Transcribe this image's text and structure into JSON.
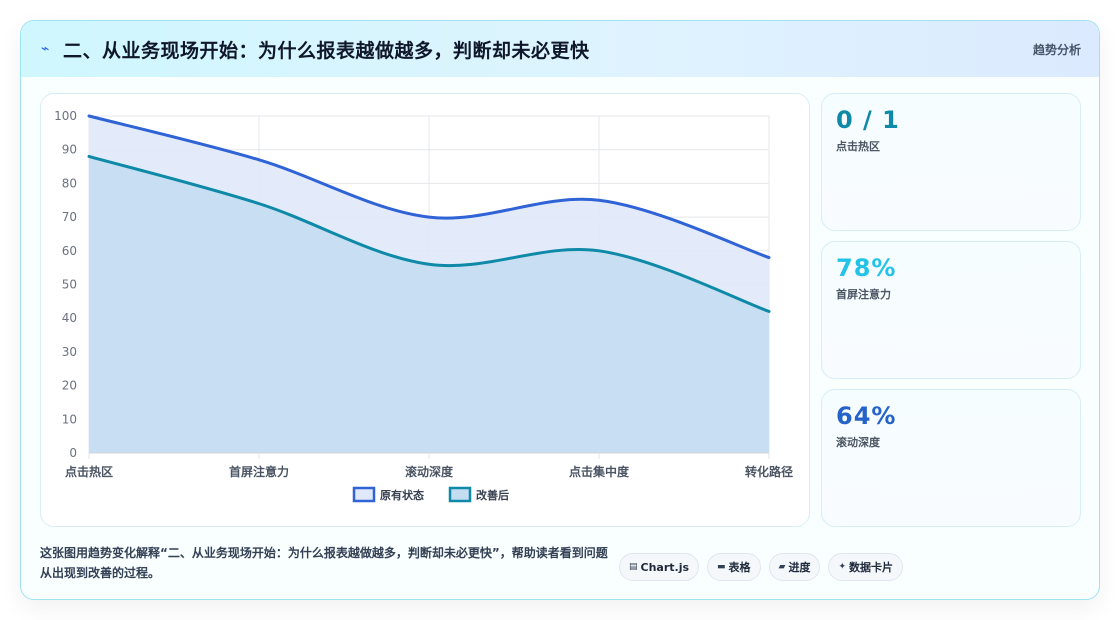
{
  "header": {
    "icon": "lightning-icon",
    "title": "二、从业务现场开始：为什么报表越做越多，判断却未必更快",
    "tag": "趋势分析"
  },
  "stats": [
    {
      "value": "0 / 1",
      "label": "点击热区",
      "color": "#0e8aa8"
    },
    {
      "value": "78%",
      "label": "首屏注意力",
      "color": "#22c3e6"
    },
    {
      "value": "64%",
      "label": "滚动深度",
      "color": "#2563c8"
    }
  ],
  "footer": {
    "text": "这张图用趋势变化解释“二、从业务现场开始：为什么报表越做越多，判断却未必更快”，帮助读者看到问题从出现到改善的过程。",
    "pills": [
      {
        "icon": "chart-icon",
        "glyph": "▤",
        "label": "Chart.js"
      },
      {
        "icon": "table-icon",
        "glyph": "▬",
        "label": "表格"
      },
      {
        "icon": "progress-icon",
        "glyph": "▰",
        "label": "进度"
      },
      {
        "icon": "sparkle-icon",
        "glyph": "✦",
        "label": "数据卡片"
      }
    ]
  },
  "chart_data": {
    "type": "area",
    "categories": [
      "点击热区",
      "首屏注意力",
      "滚动深度",
      "点击集中度",
      "转化路径"
    ],
    "series": [
      {
        "name": "原有状态",
        "values": [
          100,
          87,
          70,
          75,
          58
        ],
        "color": "#2f63d6",
        "fill": "#e0e9fb"
      },
      {
        "name": "改善后",
        "values": [
          88,
          74,
          56,
          60,
          42
        ],
        "color": "#0e8aa8",
        "fill": "#c4ddf1"
      }
    ],
    "ylim": [
      0,
      100
    ],
    "yticks": [
      0,
      10,
      20,
      30,
      40,
      50,
      60,
      70,
      80,
      90,
      100
    ],
    "grid": true,
    "legend": "bottom"
  }
}
